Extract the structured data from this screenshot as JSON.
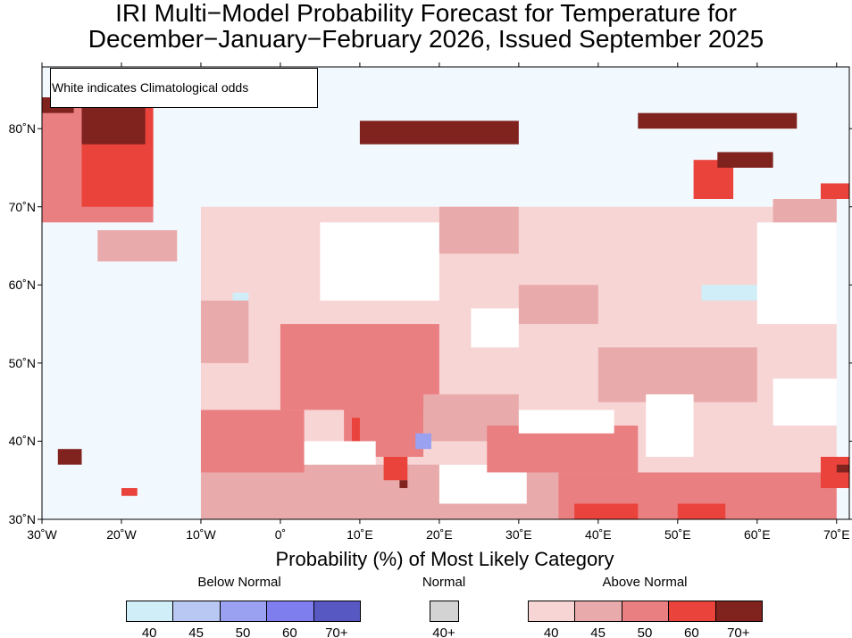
{
  "title_line1": "IRI Multi−Model Probability Forecast for Temperature for",
  "title_line2": "December−January−February 2026, Issued September 2025",
  "note": "White indicates Climatological odds",
  "colorbar_title": "Probability (%) of Most Likely Category",
  "legend": {
    "below": {
      "label": "Below Normal",
      "ticks": [
        "40",
        "45",
        "50",
        "60",
        "70+"
      ],
      "colors": [
        "#cfeef8",
        "#b8c8f2",
        "#9aa1f0",
        "#7f7eee",
        "#5858c2"
      ]
    },
    "normal": {
      "label": "Normal",
      "ticks": [
        "40+"
      ],
      "colors": [
        "#d3d3d3"
      ]
    },
    "above": {
      "label": "Above Normal",
      "ticks": [
        "40",
        "45",
        "50",
        "60",
        "70+"
      ],
      "colors": [
        "#f8d5d5",
        "#e8aaaa",
        "#ea7f82",
        "#ea433b",
        "#80221e"
      ]
    }
  },
  "axes": {
    "lon_labels": [
      "30˚W",
      "20˚W",
      "10˚W",
      "0˚",
      "10˚E",
      "20˚E",
      "30˚E",
      "40˚E",
      "50˚E",
      "60˚E",
      "70˚E"
    ],
    "lon_values": [
      -30,
      -20,
      -10,
      0,
      10,
      20,
      30,
      40,
      50,
      60,
      70
    ],
    "lat_labels": [
      "30˚N",
      "40˚N",
      "50˚N",
      "60˚N",
      "70˚N",
      "80˚N"
    ],
    "lat_values": [
      30,
      40,
      50,
      60,
      70,
      80
    ],
    "lon_range": [
      -30,
      71.6
    ],
    "lat_range": [
      30,
      87.9
    ]
  },
  "colors": {
    "ocean": "#f2f9fe",
    "frame": "#000000"
  },
  "forecast_patches": [
    {
      "lon": [
        -10,
        70
      ],
      "lat": [
        30,
        70
      ],
      "cat": "A40"
    },
    {
      "lon": [
        -10,
        35
      ],
      "lat": [
        30,
        37
      ],
      "cat": "A45"
    },
    {
      "lon": [
        -10,
        3
      ],
      "lat": [
        36,
        44
      ],
      "cat": "A50"
    },
    {
      "lon": [
        0,
        20
      ],
      "lat": [
        44,
        55
      ],
      "cat": "A50"
    },
    {
      "lon": [
        8,
        18
      ],
      "lat": [
        38,
        46
      ],
      "cat": "A50"
    },
    {
      "lon": [
        9,
        10
      ],
      "lat": [
        40,
        43
      ],
      "cat": "A60"
    },
    {
      "lon": [
        13,
        16
      ],
      "lat": [
        35,
        38
      ],
      "cat": "A60"
    },
    {
      "lon": [
        15,
        16
      ],
      "lat": [
        34,
        35
      ],
      "cat": "A70"
    },
    {
      "lon": [
        18,
        30
      ],
      "lat": [
        40,
        46
      ],
      "cat": "A45"
    },
    {
      "lon": [
        17,
        19
      ],
      "lat": [
        39,
        41
      ],
      "cat": "B50"
    },
    {
      "lon": [
        20,
        31
      ],
      "lat": [
        32,
        37
      ],
      "cat": "W"
    },
    {
      "lon": [
        3,
        12
      ],
      "lat": [
        37,
        40
      ],
      "cat": "W"
    },
    {
      "lon": [
        26,
        45
      ],
      "lat": [
        36,
        42
      ],
      "cat": "A50"
    },
    {
      "lon": [
        30,
        42
      ],
      "lat": [
        41,
        44
      ],
      "cat": "W"
    },
    {
      "lon": [
        35,
        70
      ],
      "lat": [
        30,
        36
      ],
      "cat": "A50"
    },
    {
      "lon": [
        37,
        45
      ],
      "lat": [
        30,
        32
      ],
      "cat": "A60"
    },
    {
      "lon": [
        50,
        56
      ],
      "lat": [
        30,
        32
      ],
      "cat": "A60"
    },
    {
      "lon": [
        68,
        71.6
      ],
      "lat": [
        34,
        38
      ],
      "cat": "A60"
    },
    {
      "lon": [
        70,
        71.6
      ],
      "lat": [
        36,
        37
      ],
      "cat": "A70"
    },
    {
      "lon": [
        40,
        60
      ],
      "lat": [
        45,
        52
      ],
      "cat": "A45"
    },
    {
      "lon": [
        46,
        52
      ],
      "lat": [
        38,
        46
      ],
      "cat": "W"
    },
    {
      "lon": [
        62,
        70
      ],
      "lat": [
        42,
        48
      ],
      "cat": "W"
    },
    {
      "lon": [
        30,
        40
      ],
      "lat": [
        55,
        60
      ],
      "cat": "A45"
    },
    {
      "lon": [
        24,
        30
      ],
      "lat": [
        52,
        57
      ],
      "cat": "W"
    },
    {
      "lon": [
        5,
        20
      ],
      "lat": [
        58,
        68
      ],
      "cat": "W"
    },
    {
      "lon": [
        20,
        30
      ],
      "lat": [
        64,
        70
      ],
      "cat": "A45"
    },
    {
      "lon": [
        53,
        60
      ],
      "lat": [
        58,
        60
      ],
      "cat": "B40"
    },
    {
      "lon": [
        -6,
        -4
      ],
      "lat": [
        57,
        59
      ],
      "cat": "B40"
    },
    {
      "lon": [
        60,
        70
      ],
      "lat": [
        55,
        68
      ],
      "cat": "W"
    },
    {
      "lon": [
        -10,
        -4
      ],
      "lat": [
        50,
        58
      ],
      "cat": "A45"
    },
    {
      "lon": [
        -30,
        -16
      ],
      "lat": [
        68,
        84
      ],
      "cat": "A50"
    },
    {
      "lon": [
        -25,
        -16
      ],
      "lat": [
        70,
        84
      ],
      "cat": "A60"
    },
    {
      "lon": [
        -25,
        -17
      ],
      "lat": [
        78,
        84
      ],
      "cat": "A70"
    },
    {
      "lon": [
        -30,
        -26
      ],
      "lat": [
        82,
        84
      ],
      "cat": "A70"
    },
    {
      "lon": [
        -23,
        -13
      ],
      "lat": [
        63,
        67
      ],
      "cat": "A45"
    },
    {
      "lon": [
        10,
        30
      ],
      "lat": [
        78,
        81
      ],
      "cat": "A70"
    },
    {
      "lon": [
        45,
        65
      ],
      "lat": [
        80,
        82
      ],
      "cat": "A70"
    },
    {
      "lon": [
        52,
        57
      ],
      "lat": [
        71,
        76
      ],
      "cat": "A60"
    },
    {
      "lon": [
        55,
        62
      ],
      "lat": [
        75,
        77
      ],
      "cat": "A70"
    },
    {
      "lon": [
        62,
        70
      ],
      "lat": [
        68,
        71
      ],
      "cat": "A45"
    },
    {
      "lon": [
        68,
        71.6
      ],
      "lat": [
        71,
        73
      ],
      "cat": "A60"
    },
    {
      "lon": [
        -28,
        -25
      ],
      "lat": [
        37,
        39
      ],
      "cat": "A70"
    },
    {
      "lon": [
        -20,
        -18
      ],
      "lat": [
        33,
        34
      ],
      "cat": "A60"
    },
    {
      "lon": [
        -21,
        -19
      ],
      "lat": [
        71,
        72
      ],
      "cat": "A60"
    }
  ]
}
